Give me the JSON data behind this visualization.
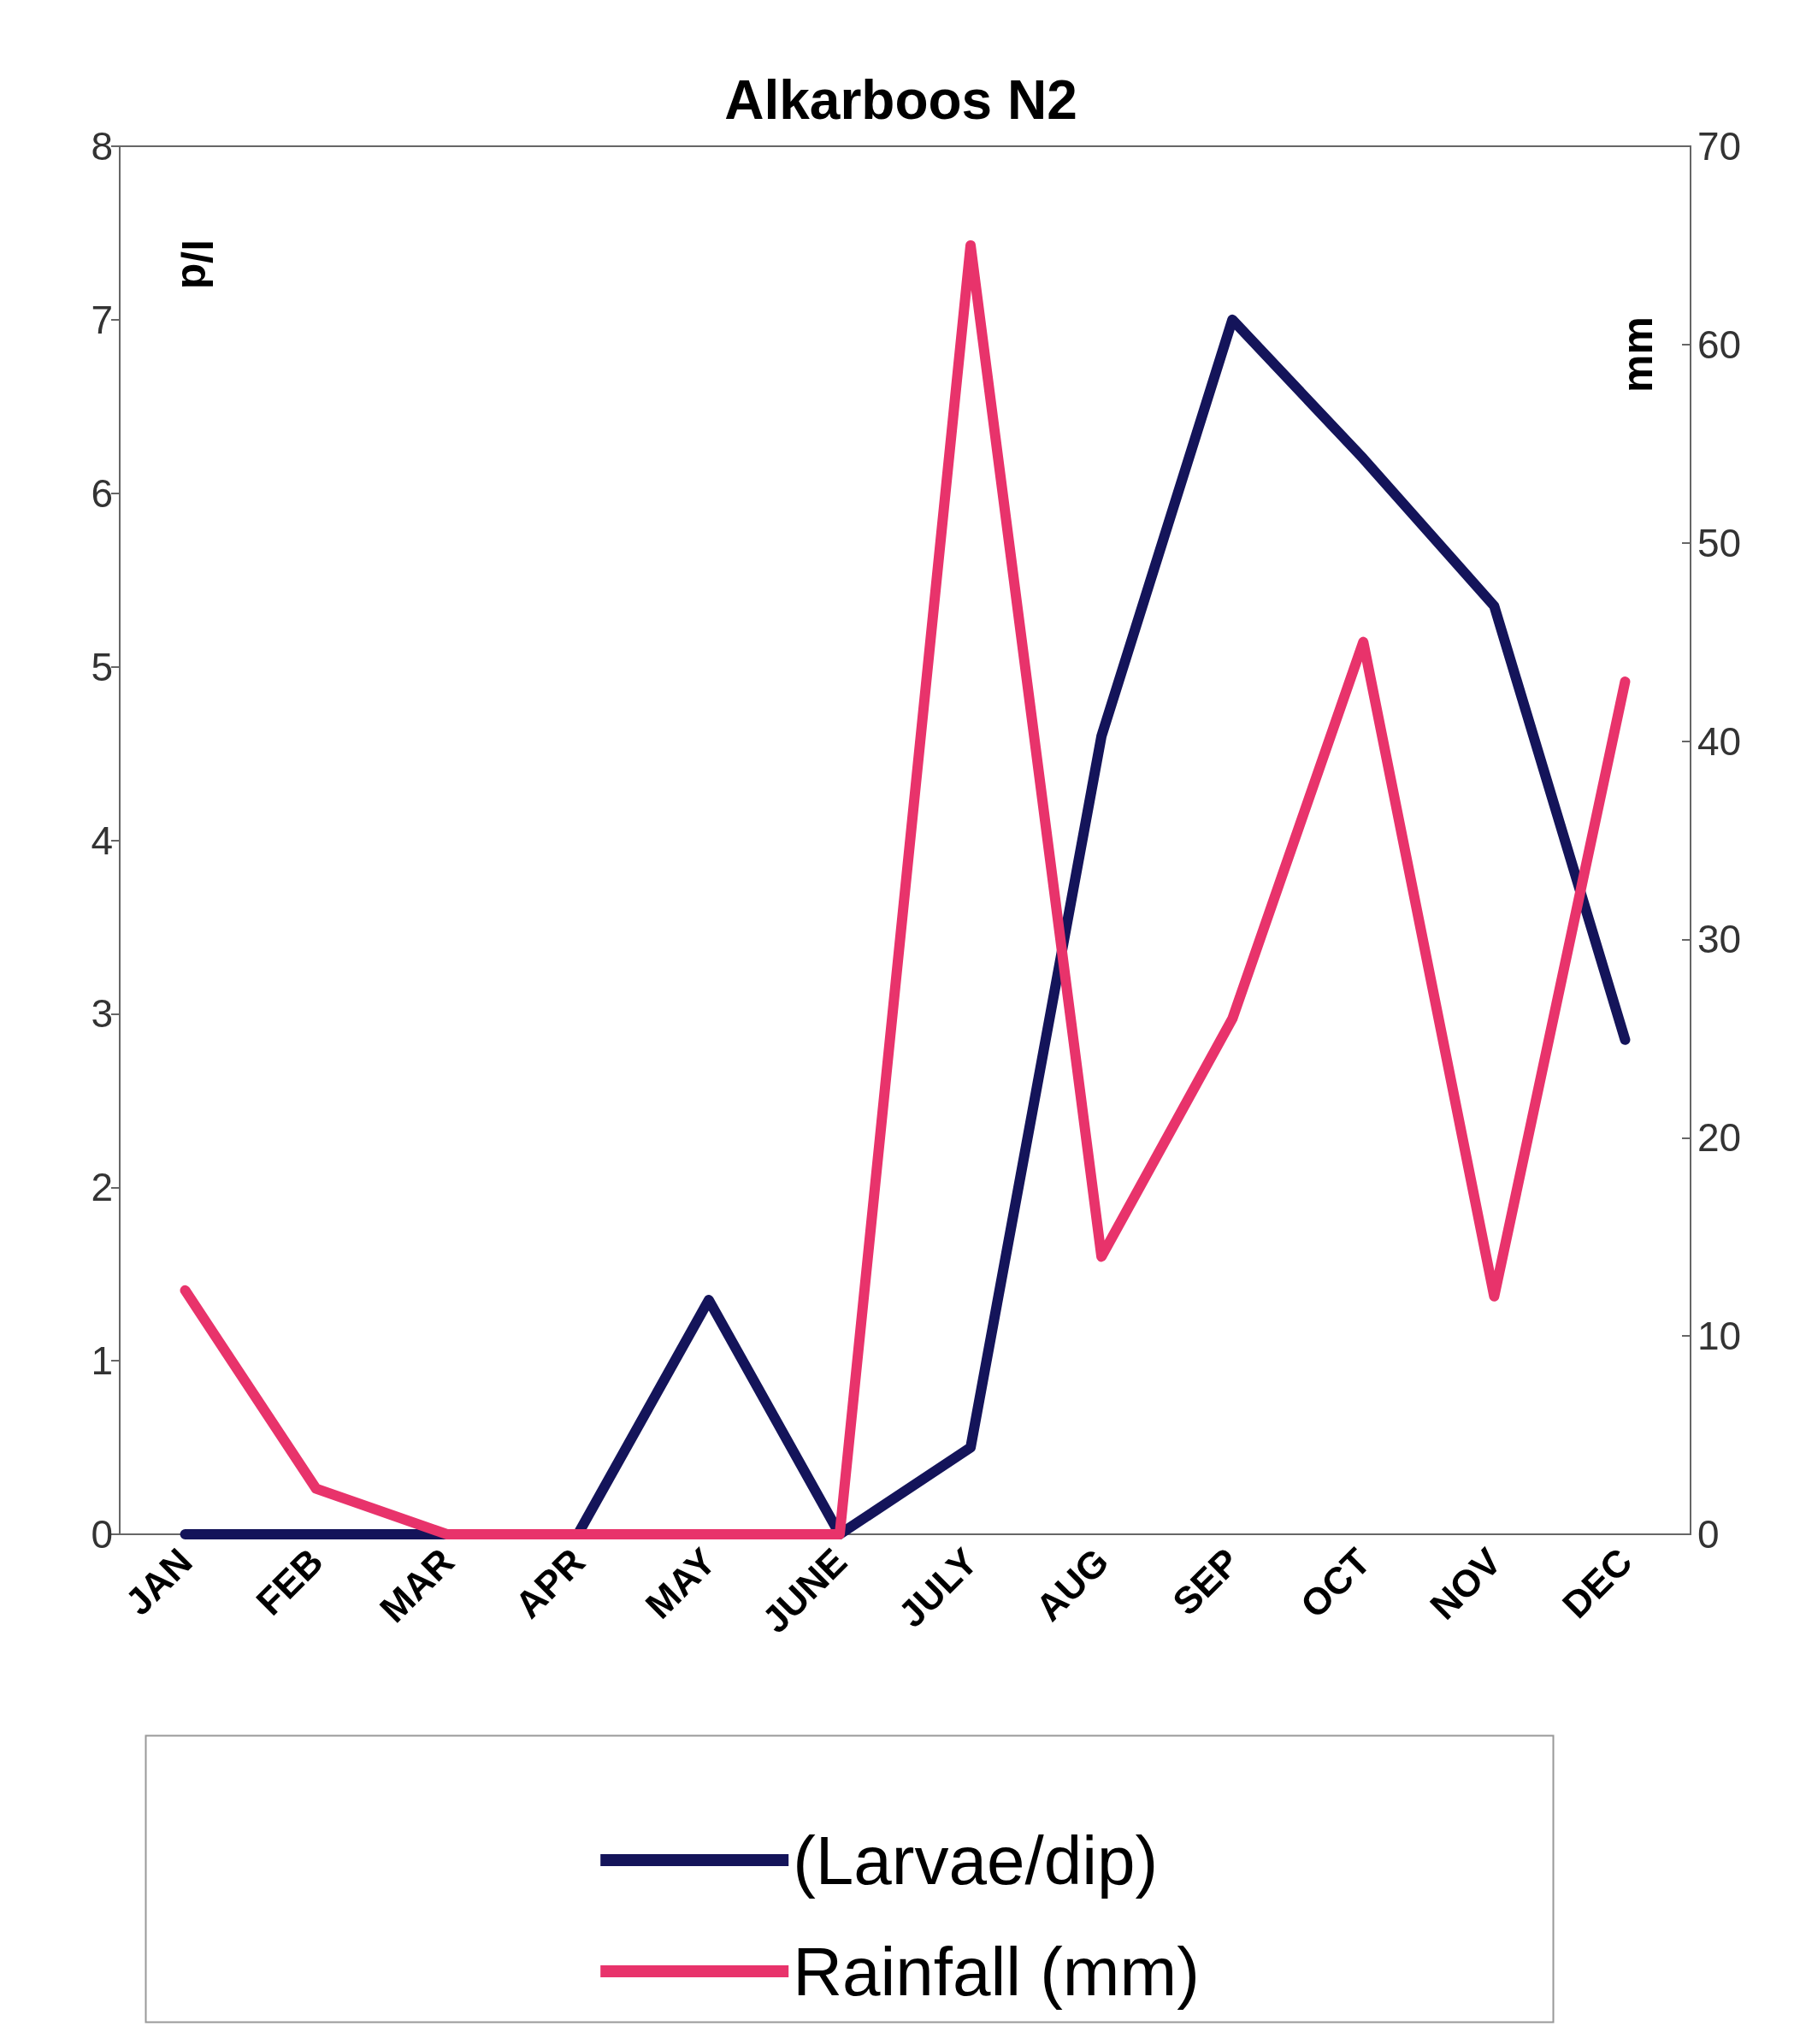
{
  "chart_data": {
    "type": "line",
    "title": "Alkarboos N2",
    "ylabel": "l/d",
    "y2label": "mm",
    "categories": [
      "JAN",
      "FEB",
      "MAR",
      "APR",
      "MAY",
      "JUNE",
      "JULY",
      "AUG",
      "SEP",
      "OCT",
      "NOV",
      "DEC"
    ],
    "series": [
      {
        "name": "(Larvae/dip)",
        "color": "#14145a",
        "values": [
          0,
          0,
          0,
          0,
          1.35,
          0,
          0.5,
          4.6,
          7.0,
          6.2,
          5.35,
          2.85
        ]
      },
      {
        "name": "Rainfall (mm)",
        "color": "#e8336b",
        "axis": "y2",
        "values": [
          12.3,
          2.3,
          0,
          0,
          0,
          0,
          65,
          14,
          26,
          45,
          12,
          43
        ]
      }
    ],
    "ylim": [
      0,
      8
    ],
    "yticks": [
      0,
      1,
      2,
      3,
      4,
      5,
      6,
      7,
      8
    ],
    "y2lim": [
      0,
      70
    ],
    "y2ticks": [
      0,
      10,
      20,
      30,
      40,
      50,
      60,
      70
    ],
    "grid": false,
    "legend": "bottom",
    "marker": "none",
    "line_style": "solid"
  }
}
